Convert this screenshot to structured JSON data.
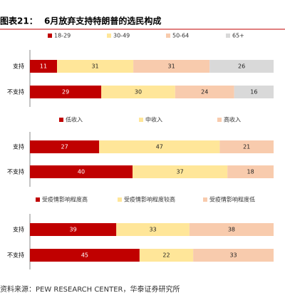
{
  "title_prefix": "图表21：",
  "title": "6月放弃支持特朗普的选民构成",
  "source": "资料来源：PEW RESEARCH CENTER，华泰证券研究所",
  "chart_data": [
    {
      "type": "stacked_bar_100",
      "categories": [
        "支持",
        "不支持"
      ],
      "series": [
        {
          "name": "18-29",
          "color": "#C00000",
          "values": [
            11,
            29
          ]
        },
        {
          "name": "30-49",
          "color": "#FFE699",
          "values": [
            31,
            30
          ]
        },
        {
          "name": "50-64",
          "color": "#F8CBAD",
          "values": [
            31,
            24
          ]
        },
        {
          "name": "65+",
          "color": "#D9D9D9",
          "values": [
            26,
            16
          ]
        }
      ]
    },
    {
      "type": "stacked_bar_100",
      "categories": [
        "支持",
        "不支持"
      ],
      "series": [
        {
          "name": "低收入",
          "color": "#C00000",
          "values": [
            27,
            40
          ]
        },
        {
          "name": "中收入",
          "color": "#FFE699",
          "values": [
            47,
            37
          ]
        },
        {
          "name": "高收入",
          "color": "#F8CBAD",
          "values": [
            21,
            18
          ]
        }
      ]
    },
    {
      "type": "stacked_bar_100",
      "categories": [
        "支持",
        "不支持"
      ],
      "series": [
        {
          "name": "受疫情影响程度高",
          "color": "#C00000",
          "values": [
            39,
            45
          ]
        },
        {
          "name": "受疫情影响程度较高",
          "color": "#FFE699",
          "values": [
            33,
            22
          ]
        },
        {
          "name": "受疫情影响程度低",
          "color": "#F8CBAD",
          "values": [
            38,
            33
          ]
        }
      ]
    }
  ]
}
